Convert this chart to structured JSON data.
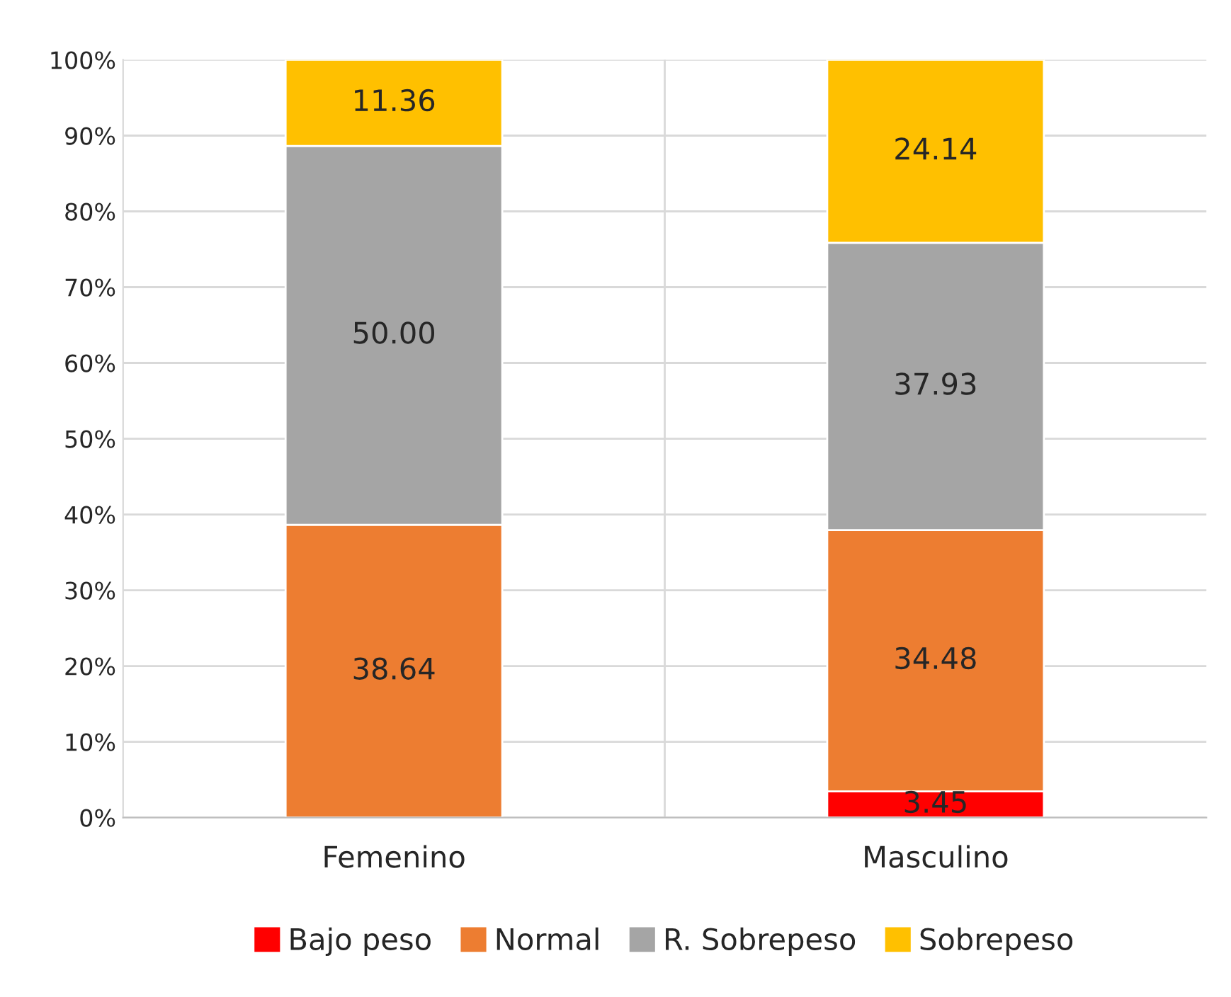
{
  "chart_data": {
    "type": "bar",
    "stacked": true,
    "categories": [
      "Femenino",
      "Masculino"
    ],
    "series": [
      {
        "name": "Bajo peso",
        "color": "#ff0000",
        "values": [
          0,
          3.45
        ],
        "value_labels": [
          null,
          "3.45"
        ]
      },
      {
        "name": "Normal",
        "color": "#ed7d31",
        "values": [
          38.64,
          34.48
        ],
        "value_labels": [
          "38.64",
          "34.48"
        ]
      },
      {
        "name": "R. Sobrepeso",
        "color": "#a5a5a5",
        "values": [
          50.0,
          37.93
        ],
        "value_labels": [
          "50.00",
          "37.93"
        ]
      },
      {
        "name": "Sobrepeso",
        "color": "#ffc000",
        "values": [
          11.36,
          24.14
        ],
        "value_labels": [
          "11.36",
          "24.14"
        ]
      }
    ],
    "ylim": [
      0,
      100
    ],
    "yticks": [
      {
        "value": 0,
        "label": "0%"
      },
      {
        "value": 10,
        "label": "10%"
      },
      {
        "value": 20,
        "label": "20%"
      },
      {
        "value": 30,
        "label": "30%"
      },
      {
        "value": 40,
        "label": "40%"
      },
      {
        "value": 50,
        "label": "50%"
      },
      {
        "value": 60,
        "label": "60%"
      },
      {
        "value": 70,
        "label": "70%"
      },
      {
        "value": 80,
        "label": "80%"
      },
      {
        "value": 90,
        "label": "90%"
      },
      {
        "value": 100,
        "label": "100%"
      }
    ],
    "grid": true,
    "legend": "bottom"
  }
}
